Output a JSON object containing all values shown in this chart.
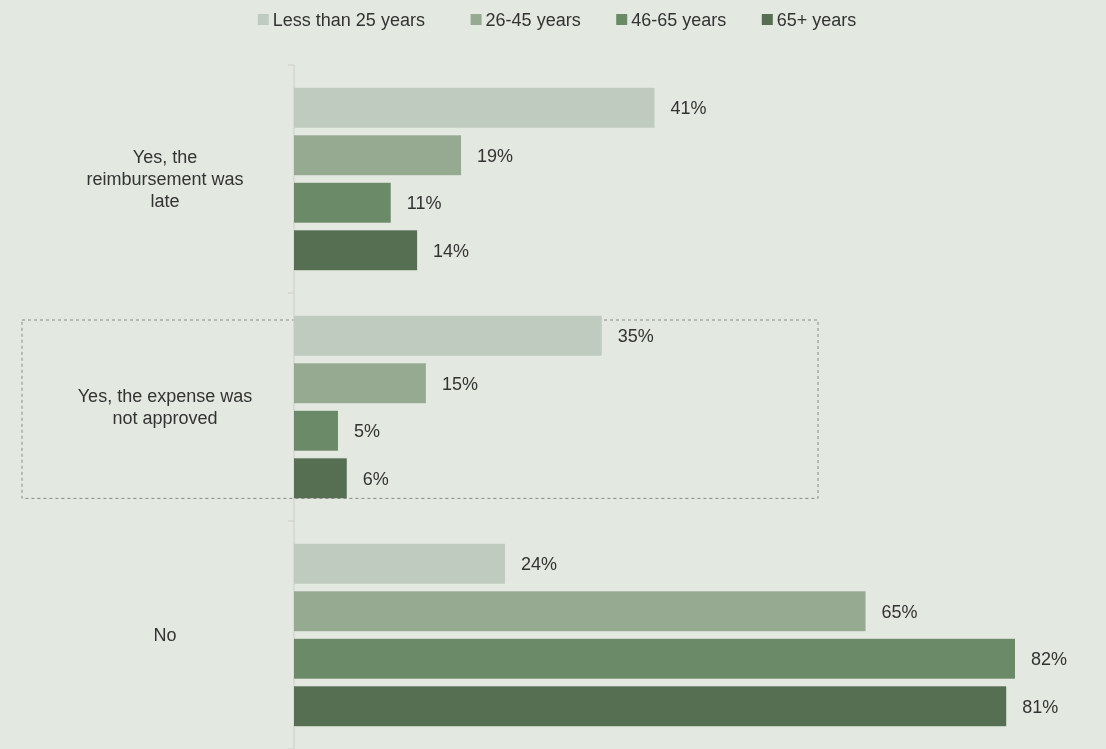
{
  "chart_data": {
    "type": "bar",
    "orientation": "horizontal",
    "categories": [
      "Yes, the reimbursement was late",
      "Yes, the expense was not approved",
      "No"
    ],
    "series": [
      {
        "name": "Less than 25 years",
        "color": "#c0cbbf",
        "values": [
          41,
          35,
          24
        ],
        "value_labels": [
          "41%",
          "35%",
          "24%"
        ]
      },
      {
        "name": "26-45 years",
        "color": "#96aa91",
        "values": [
          19,
          15,
          65
        ],
        "value_labels": [
          "19%",
          "15%",
          "65%"
        ]
      },
      {
        "name": "46-65 years",
        "color": "#6b8a68",
        "values": [
          11,
          5,
          82
        ],
        "value_labels": [
          "11%",
          "5%",
          "82%"
        ]
      },
      {
        "name": "65+ years",
        "color": "#566f53",
        "values": [
          14,
          6,
          81
        ],
        "value_labels": [
          "14%",
          "6%",
          "81%"
        ]
      }
    ],
    "legend": "top"
  }
}
